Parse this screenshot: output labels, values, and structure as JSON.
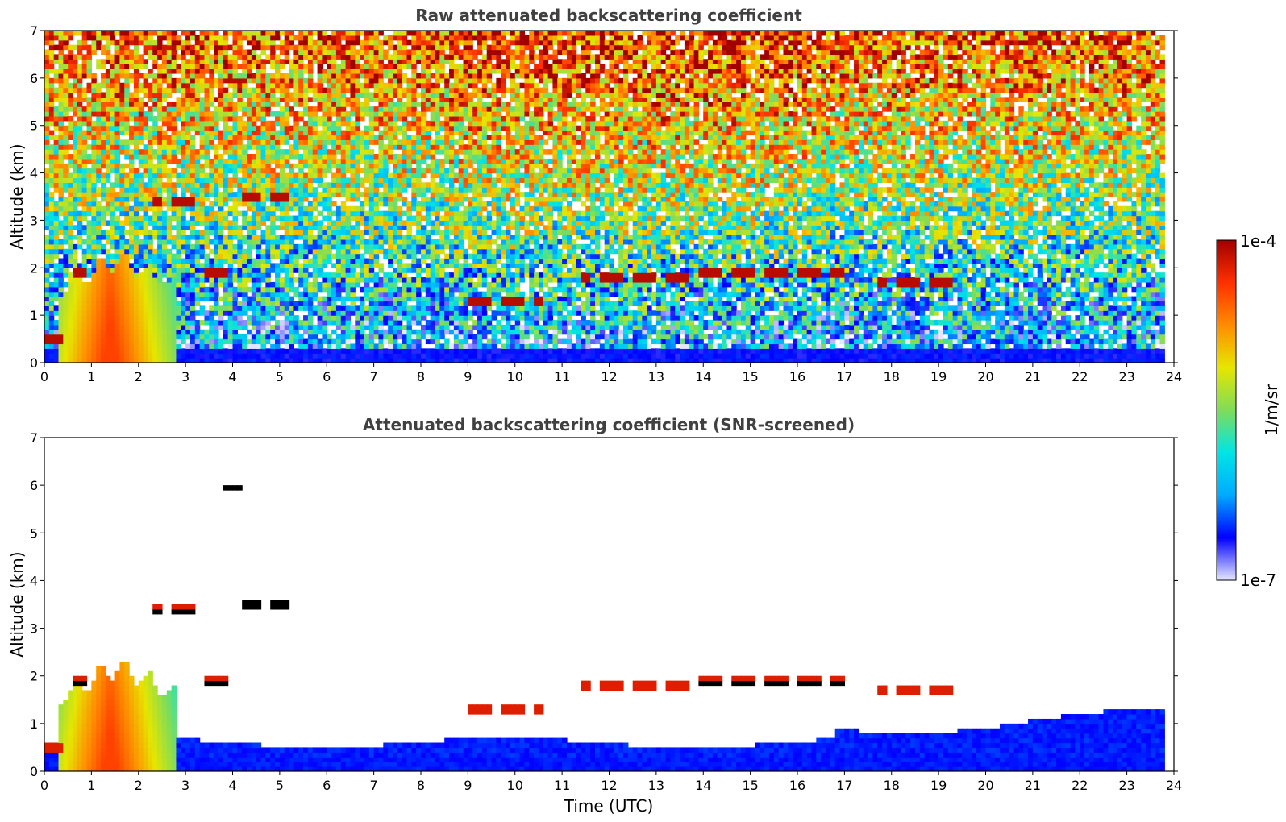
{
  "chart_data": [
    {
      "type": "heatmap",
      "title": "Raw attenuated backscattering coefficient",
      "xlabel": "",
      "ylabel": "Altitude (km)",
      "xlim": [
        0,
        24
      ],
      "ylim": [
        0,
        7
      ],
      "x_ticks": [
        "0",
        "1",
        "2",
        "3",
        "4",
        "5",
        "6",
        "7",
        "8",
        "9",
        "10",
        "11",
        "12",
        "13",
        "14",
        "15",
        "16",
        "17",
        "18",
        "19",
        "20",
        "21",
        "22",
        "23",
        "24"
      ],
      "y_ticks": [
        "0",
        "1",
        "2",
        "3",
        "4",
        "5",
        "6",
        "7"
      ],
      "data_end_time": 23.8,
      "cloud_layers": [
        {
          "t0": 0.0,
          "t1": 0.4,
          "alt": 0.5
        },
        {
          "t0": 0.4,
          "t1": 0.9,
          "alt": 1.9
        },
        {
          "t0": 2.3,
          "t1": 3.3,
          "alt": 3.4
        },
        {
          "t0": 3.2,
          "t1": 3.9,
          "alt": 1.9
        },
        {
          "t0": 4.2,
          "t1": 5.2,
          "alt": 3.5
        },
        {
          "t0": 3.8,
          "t1": 4.2,
          "alt": 5.95
        },
        {
          "t0": 9.0,
          "t1": 10.6,
          "alt": 1.3
        },
        {
          "t0": 11.4,
          "t1": 13.8,
          "alt": 1.8
        },
        {
          "t0": 13.8,
          "t1": 17.0,
          "alt": 1.9
        },
        {
          "t0": 17.7,
          "t1": 19.4,
          "alt": 1.7
        }
      ],
      "aerosol_plume": {
        "t0": 0.3,
        "t1": 2.8,
        "alt_top": 2.2
      }
    },
    {
      "type": "heatmap",
      "title": "Attenuated backscattering coefficient (SNR-screened)",
      "xlabel": "Time (UTC)",
      "ylabel": "Altitude (km)",
      "xlim": [
        0,
        24
      ],
      "ylim": [
        0,
        7
      ],
      "x_ticks": [
        "0",
        "1",
        "2",
        "3",
        "4",
        "5",
        "6",
        "7",
        "8",
        "9",
        "10",
        "11",
        "12",
        "13",
        "14",
        "15",
        "16",
        "17",
        "18",
        "19",
        "20",
        "21",
        "22",
        "23",
        "24"
      ],
      "y_ticks": [
        "0",
        "1",
        "2",
        "3",
        "4",
        "5",
        "6",
        "7"
      ]
    }
  ],
  "colorbar": {
    "min_label": "1e-7",
    "max_label": "1e-4",
    "unit": "1/m/sr",
    "colormap": [
      "#e6e6ff",
      "#0000ff",
      "#00aaff",
      "#00e5e5",
      "#7fdc5a",
      "#e6e600",
      "#ff8c00",
      "#ff3000",
      "#a00000"
    ]
  }
}
